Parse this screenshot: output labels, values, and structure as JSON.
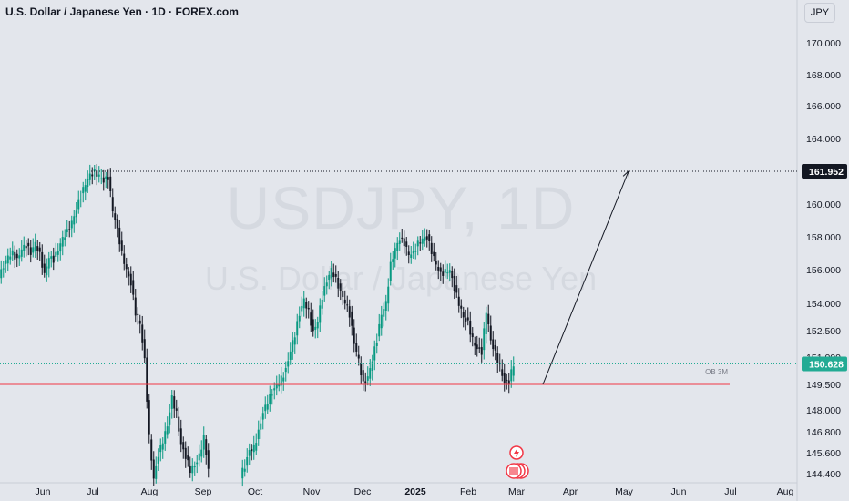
{
  "header": {
    "title": "U.S. Dollar / Japanese Yen · 1D · FOREX.com",
    "currency_button": "JPY"
  },
  "watermark": {
    "symbol": "USDJPY, 1D",
    "name": "U.S. Dollar / Japanese Yen"
  },
  "colors": {
    "background": "#e3e6ec",
    "up": "#089981",
    "down": "#131722",
    "support_line": "#f23645",
    "last_price": "#22ab94",
    "resistance_label_bg": "#131722"
  },
  "chart_data": {
    "type": "candlestick",
    "symbol": "USDJPY",
    "timeframe": "1D",
    "x_axis": {
      "ticks": [
        "Jun",
        "Jul",
        "Aug",
        "Sep",
        "Oct",
        "Nov",
        "Dec",
        "2025",
        "Feb",
        "Mar",
        "Apr",
        "May",
        "Jun",
        "Jul",
        "Aug"
      ]
    },
    "y_axis": {
      "ticks": [
        "170.000",
        "168.000",
        "166.000",
        "164.000",
        "160.000",
        "158.000",
        "156.000",
        "154.000",
        "152.500",
        "151.000",
        "149.500",
        "148.000",
        "146.800",
        "145.600",
        "144.400"
      ],
      "ylim": [
        144.0,
        170.5
      ]
    },
    "series_close": [
      [
        0,
        155.5
      ],
      [
        5,
        156.2
      ],
      [
        10,
        156.8
      ],
      [
        15,
        157.0
      ],
      [
        20,
        156.6
      ],
      [
        25,
        157.3
      ],
      [
        30,
        157.5
      ],
      [
        35,
        157.0
      ],
      [
        40,
        157.6
      ],
      [
        45,
        156.9
      ],
      [
        50,
        155.7
      ],
      [
        55,
        156.8
      ],
      [
        60,
        156.6
      ],
      [
        65,
        157.2
      ],
      [
        70,
        157.9
      ],
      [
        75,
        158.3
      ],
      [
        80,
        158.9
      ],
      [
        85,
        159.7
      ],
      [
        90,
        160.5
      ],
      [
        95,
        161.2
      ],
      [
        100,
        161.7
      ],
      [
        105,
        161.9
      ],
      [
        110,
        161.7
      ],
      [
        115,
        161.4
      ],
      [
        120,
        161.6
      ],
      [
        125,
        159.6
      ],
      [
        130,
        158.4
      ],
      [
        135,
        157.0
      ],
      [
        140,
        156.0
      ],
      [
        145,
        155.2
      ],
      [
        150,
        153.5
      ],
      [
        155,
        152.9
      ],
      [
        160,
        150.8
      ],
      [
        165,
        146.5
      ],
      [
        170,
        144.1
      ],
      [
        175,
        145.5
      ],
      [
        180,
        146.3
      ],
      [
        185,
        147.1
      ],
      [
        190,
        148.7
      ],
      [
        195,
        147.8
      ],
      [
        200,
        146.1
      ],
      [
        205,
        145.4
      ],
      [
        210,
        144.6
      ],
      [
        215,
        144.8
      ],
      [
        220,
        145.4
      ],
      [
        225,
        146.5
      ],
      [
        230,
        144.7
      ],
      [
        265,
        144.3
      ],
      [
        270,
        144.8
      ],
      [
        275,
        145.7
      ],
      [
        280,
        145.9
      ],
      [
        285,
        146.8
      ],
      [
        290,
        147.9
      ],
      [
        295,
        148.5
      ],
      [
        300,
        149.0
      ],
      [
        305,
        149.4
      ],
      [
        310,
        149.8
      ],
      [
        315,
        150.3
      ],
      [
        320,
        151.4
      ],
      [
        325,
        152.3
      ],
      [
        330,
        153.4
      ],
      [
        335,
        154.2
      ],
      [
        340,
        153.5
      ],
      [
        345,
        152.4
      ],
      [
        350,
        153.1
      ],
      [
        355,
        154.4
      ],
      [
        360,
        155.3
      ],
      [
        365,
        156.0
      ],
      [
        370,
        155.4
      ],
      [
        375,
        154.7
      ],
      [
        380,
        154.1
      ],
      [
        385,
        153.4
      ],
      [
        390,
        151.8
      ],
      [
        395,
        150.8
      ],
      [
        400,
        149.5
      ],
      [
        405,
        149.9
      ],
      [
        410,
        150.9
      ],
      [
        415,
        152.0
      ],
      [
        420,
        153.4
      ],
      [
        425,
        154.0
      ],
      [
        430,
        156.3
      ],
      [
        435,
        157.3
      ],
      [
        440,
        157.9
      ],
      [
        445,
        157.6
      ],
      [
        450,
        156.9
      ],
      [
        455,
        157.0
      ],
      [
        460,
        157.6
      ],
      [
        465,
        157.9
      ],
      [
        470,
        158.0
      ],
      [
        475,
        157.1
      ],
      [
        480,
        156.3
      ],
      [
        485,
        155.7
      ],
      [
        490,
        155.9
      ],
      [
        495,
        156.0
      ],
      [
        500,
        154.9
      ],
      [
        505,
        154.0
      ],
      [
        510,
        153.2
      ],
      [
        515,
        152.9
      ],
      [
        520,
        152.0
      ],
      [
        525,
        151.5
      ],
      [
        530,
        151.3
      ],
      [
        535,
        153.6
      ],
      [
        540,
        151.9
      ],
      [
        545,
        151.2
      ],
      [
        550,
        150.5
      ],
      [
        555,
        149.6
      ],
      [
        560,
        149.7
      ],
      [
        565,
        150.6
      ]
    ],
    "annotations": {
      "resistance": {
        "value": 161.952,
        "label": "161.952"
      },
      "support": {
        "value": 149.5,
        "label": "OB 3M"
      },
      "last_price": {
        "value": 150.628,
        "label": "150.628"
      },
      "projection": {
        "from": {
          "x": "Mar",
          "y": 149.5
        },
        "to": {
          "x": "May",
          "y": 161.952
        }
      }
    }
  }
}
